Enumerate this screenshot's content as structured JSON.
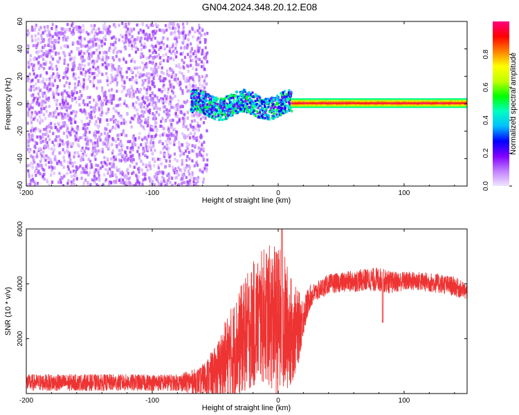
{
  "figure": {
    "title": "GN04.2024.348.20.12.E08"
  },
  "chart_data": [
    {
      "type": "heatmap",
      "title": "",
      "xlabel": "Height of straight line (km)",
      "ylabel": "Frequency (Hz)",
      "xlim": [
        -200,
        150
      ],
      "ylim": [
        -60,
        60
      ],
      "x_ticks": [
        "-200",
        "-100",
        "0",
        "100"
      ],
      "x_tick_values": [
        -200,
        -100,
        0,
        100
      ],
      "y_ticks": [
        "-60",
        "-40",
        "-20",
        "0",
        "20",
        "40",
        "60"
      ],
      "y_tick_values": [
        -60,
        -40,
        -20,
        0,
        20,
        40,
        60
      ],
      "colorbar": {
        "label": "Normalized spectral amplitude",
        "range": [
          0,
          1
        ],
        "ticks": [
          "0.0",
          "0.2",
          "0.4",
          "0.6",
          "0.8"
        ],
        "tick_values": [
          0.0,
          0.2,
          0.4,
          0.6,
          0.8
        ],
        "colors": [
          "#f2e6ff",
          "#c080ff",
          "#8000ff",
          "#0000ff",
          "#00c0ff",
          "#00ffc0",
          "#00ff00",
          "#c0ff00",
          "#ffff00",
          "#ff8000",
          "#ff0000",
          "#ff0080"
        ]
      },
      "regions": [
        {
          "name": "noise",
          "x_range": [
            -200,
            -57
          ],
          "freq_range": [
            -60,
            60
          ],
          "amplitude": [
            0.02,
            0.15
          ]
        },
        {
          "name": "transition",
          "x_range": [
            -70,
            10
          ],
          "freq_center": 0,
          "freq_halfwidth": 8,
          "amplitude": [
            0.15,
            0.55
          ]
        },
        {
          "name": "tone",
          "x_range": [
            10,
            150
          ],
          "freq_center": 1,
          "freq_halfwidth": 3,
          "amplitude": [
            0.4,
            1.0
          ]
        }
      ]
    },
    {
      "type": "line",
      "title": "",
      "xlabel": "Height of straight line (km)",
      "ylabel": "SNR (10 * v/v)",
      "xlim": [
        -200,
        150
      ],
      "ylim": [
        0,
        6000
      ],
      "x_ticks": [
        "-200",
        "-100",
        "0",
        "100"
      ],
      "x_tick_values": [
        -200,
        -100,
        0,
        100
      ],
      "y_ticks": [
        "2000",
        "4000",
        "6000"
      ],
      "y_tick_values": [
        2000,
        4000,
        6000
      ],
      "color": "#ee3333",
      "x": [
        -200,
        -160,
        -120,
        -80,
        -62,
        -50,
        -40,
        -30,
        -20,
        -10,
        0,
        5,
        10,
        15,
        20,
        25,
        30,
        35,
        40,
        50,
        60,
        70,
        80,
        90,
        100,
        110,
        120,
        130,
        140,
        150
      ],
      "y": [
        400,
        400,
        400,
        400,
        450,
        700,
        1300,
        1900,
        2500,
        2900,
        2600,
        2500,
        2300,
        2300,
        2800,
        3500,
        3700,
        3850,
        4000,
        4050,
        4100,
        4150,
        4150,
        4050,
        4100,
        4100,
        4050,
        4000,
        3900,
        3700
      ],
      "noise_amplitude": [
        300,
        300,
        300,
        300,
        500,
        1000,
        1600,
        2000,
        2300,
        2500,
        2800,
        2600,
        2000,
        1500,
        700,
        450,
        350,
        350,
        350,
        350,
        400,
        400,
        450,
        400,
        350,
        350,
        350,
        350,
        350,
        300
      ],
      "annotations": [
        {
          "x": 3,
          "y": 6000,
          "note": "spikes reach top"
        },
        {
          "x": 83,
          "y": 2600,
          "note": "dip"
        }
      ]
    }
  ]
}
